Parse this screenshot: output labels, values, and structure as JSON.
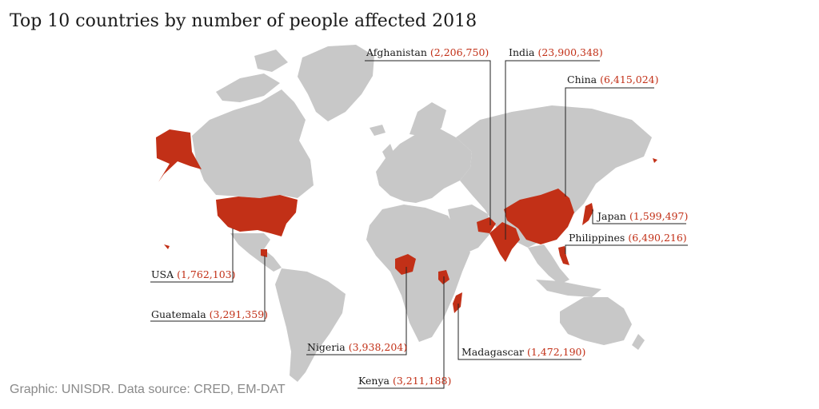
{
  "title": "Top 10 countries by number of people affected 2018",
  "footer": "Graphic: UNISDR. Data source: CRED, EM-DAT",
  "colors": {
    "land": "#c8c8c8",
    "highlight": "#c23017",
    "text": "#1a1a1a",
    "source": "#8a8a8a"
  },
  "countries": [
    {
      "name": "Afghanistan",
      "value": "(2,206,750)"
    },
    {
      "name": "India",
      "value": "(23,900,348)"
    },
    {
      "name": "China",
      "value": "(6,415,024)"
    },
    {
      "name": "Japan",
      "value": "(1,599,497)"
    },
    {
      "name": "Philippines",
      "value": "(6,490,216)"
    },
    {
      "name": "USA",
      "value": "(1,762,103)"
    },
    {
      "name": "Guatemala",
      "value": "(3,291,359)"
    },
    {
      "name": "Nigeria",
      "value": "(3,938,204)"
    },
    {
      "name": "Madagascar",
      "value": "(1,472,190)"
    },
    {
      "name": "Kenya",
      "value": "(3,211,188)"
    }
  ]
}
